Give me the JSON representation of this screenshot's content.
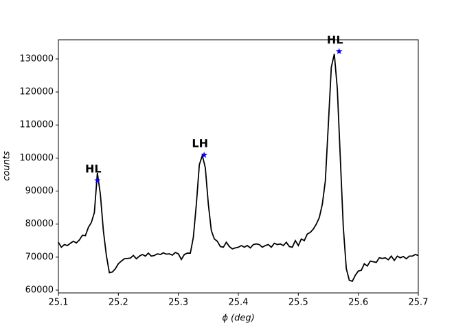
{
  "chart_data": {
    "type": "line",
    "xlabel": "ϕ (deg)",
    "ylabel": "counts",
    "xlim": [
      25.1,
      25.7
    ],
    "xticks": [
      25.1,
      25.2,
      25.3,
      25.4,
      25.5,
      25.6,
      25.7
    ],
    "ylim": [
      59170,
      135800
    ],
    "yticks": [
      60000,
      70000,
      80000,
      90000,
      100000,
      110000,
      120000,
      130000
    ],
    "x": [
      25.1,
      25.105,
      25.11,
      25.115,
      25.12,
      25.125,
      25.13,
      25.135,
      25.14,
      25.145,
      25.15,
      25.155,
      25.16,
      25.165,
      25.17,
      25.175,
      25.18,
      25.185,
      25.19,
      25.195,
      25.2,
      25.205,
      25.21,
      25.215,
      25.22,
      25.225,
      25.23,
      25.235,
      25.24,
      25.245,
      25.25,
      25.255,
      25.26,
      25.265,
      25.27,
      25.275,
      25.28,
      25.285,
      25.29,
      25.295,
      25.3,
      25.305,
      25.31,
      25.315,
      25.32,
      25.325,
      25.33,
      25.335,
      25.34,
      25.345,
      25.35,
      25.355,
      25.36,
      25.365,
      25.37,
      25.375,
      25.38,
      25.385,
      25.39,
      25.395,
      25.4,
      25.405,
      25.41,
      25.415,
      25.42,
      25.425,
      25.43,
      25.435,
      25.44,
      25.445,
      25.45,
      25.455,
      25.46,
      25.465,
      25.47,
      25.475,
      25.48,
      25.485,
      25.49,
      25.495,
      25.5,
      25.505,
      25.51,
      25.515,
      25.52,
      25.525,
      25.53,
      25.535,
      25.54,
      25.545,
      25.55,
      25.555,
      25.56,
      25.565,
      25.57,
      25.575,
      25.58,
      25.585,
      25.59,
      25.595,
      25.6,
      25.605,
      25.61,
      25.615,
      25.62,
      25.625,
      25.63,
      25.635,
      25.64,
      25.645,
      25.65,
      25.655,
      25.66,
      25.665,
      25.67,
      25.675,
      25.68,
      25.685,
      25.69,
      25.695,
      25.7
    ],
    "series": [
      {
        "color": "#000000",
        "values": [
          74500,
          73000,
          73800,
          73500,
          74200,
          74800,
          74300,
          75200,
          76600,
          76500,
          79000,
          80500,
          83500,
          95500,
          89000,
          78000,
          70500,
          65300,
          65500,
          66500,
          68000,
          68800,
          69500,
          69600,
          69700,
          70500,
          69500,
          70300,
          70800,
          70300,
          71200,
          70300,
          70500,
          71000,
          70800,
          71300,
          70900,
          71000,
          70600,
          71400,
          71000,
          69300,
          70800,
          71200,
          71200,
          76000,
          86000,
          98000,
          100800,
          97000,
          86000,
          78000,
          75500,
          74800,
          73200,
          73000,
          74500,
          73200,
          72500,
          72800,
          73000,
          73500,
          73000,
          73500,
          72800,
          73800,
          74000,
          73800,
          73000,
          73500,
          73800,
          73000,
          74200,
          73800,
          74000,
          73500,
          74500,
          73200,
          73000,
          75000,
          73500,
          75500,
          75000,
          77000,
          77500,
          78500,
          80000,
          82000,
          86000,
          93000,
          110000,
          127500,
          131500,
          121000,
          100000,
          79000,
          66500,
          63000,
          62700,
          64500,
          65800,
          66000,
          68000,
          67300,
          68800,
          68600,
          68400,
          69800,
          69600,
          69800,
          69200,
          70300,
          69000,
          70300,
          69800,
          70200,
          69500,
          70300,
          70300,
          70800,
          70500
        ]
      }
    ],
    "peaks": {
      "color": "#0000ff",
      "x": [
        25.165,
        25.343,
        25.568
      ],
      "values": [
        93200,
        100900,
        132300
      ],
      "labels": [
        "HL",
        "LH",
        "HL"
      ]
    }
  }
}
